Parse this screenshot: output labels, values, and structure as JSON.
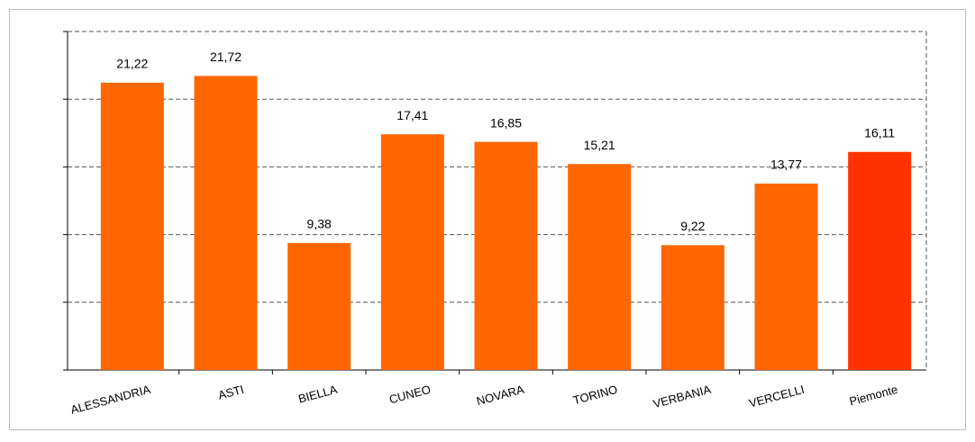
{
  "chart_data": {
    "type": "bar",
    "categories": [
      "ALESSANDRIA",
      "ASTI",
      "BIELLA",
      "CUNEO",
      "NOVARA",
      "TORINO",
      "VERBANIA",
      "VERCELLI",
      "Piemonte"
    ],
    "values": [
      21.22,
      21.72,
      9.38,
      17.41,
      16.85,
      15.21,
      9.22,
      13.77,
      16.11
    ],
    "value_labels": [
      "21,22",
      "21,72",
      "9,38",
      "17,41",
      "16,85",
      "15,21",
      "9,22",
      "13,77",
      "16,11"
    ],
    "colors": [
      "#ff6600",
      "#ff6600",
      "#ff6600",
      "#ff6600",
      "#ff6600",
      "#ff6600",
      "#ff6600",
      "#ff6600",
      "#ff3300"
    ],
    "ylim": [
      0,
      25
    ],
    "yticks": [
      0,
      5,
      10,
      15,
      20,
      25
    ],
    "grid": true
  }
}
